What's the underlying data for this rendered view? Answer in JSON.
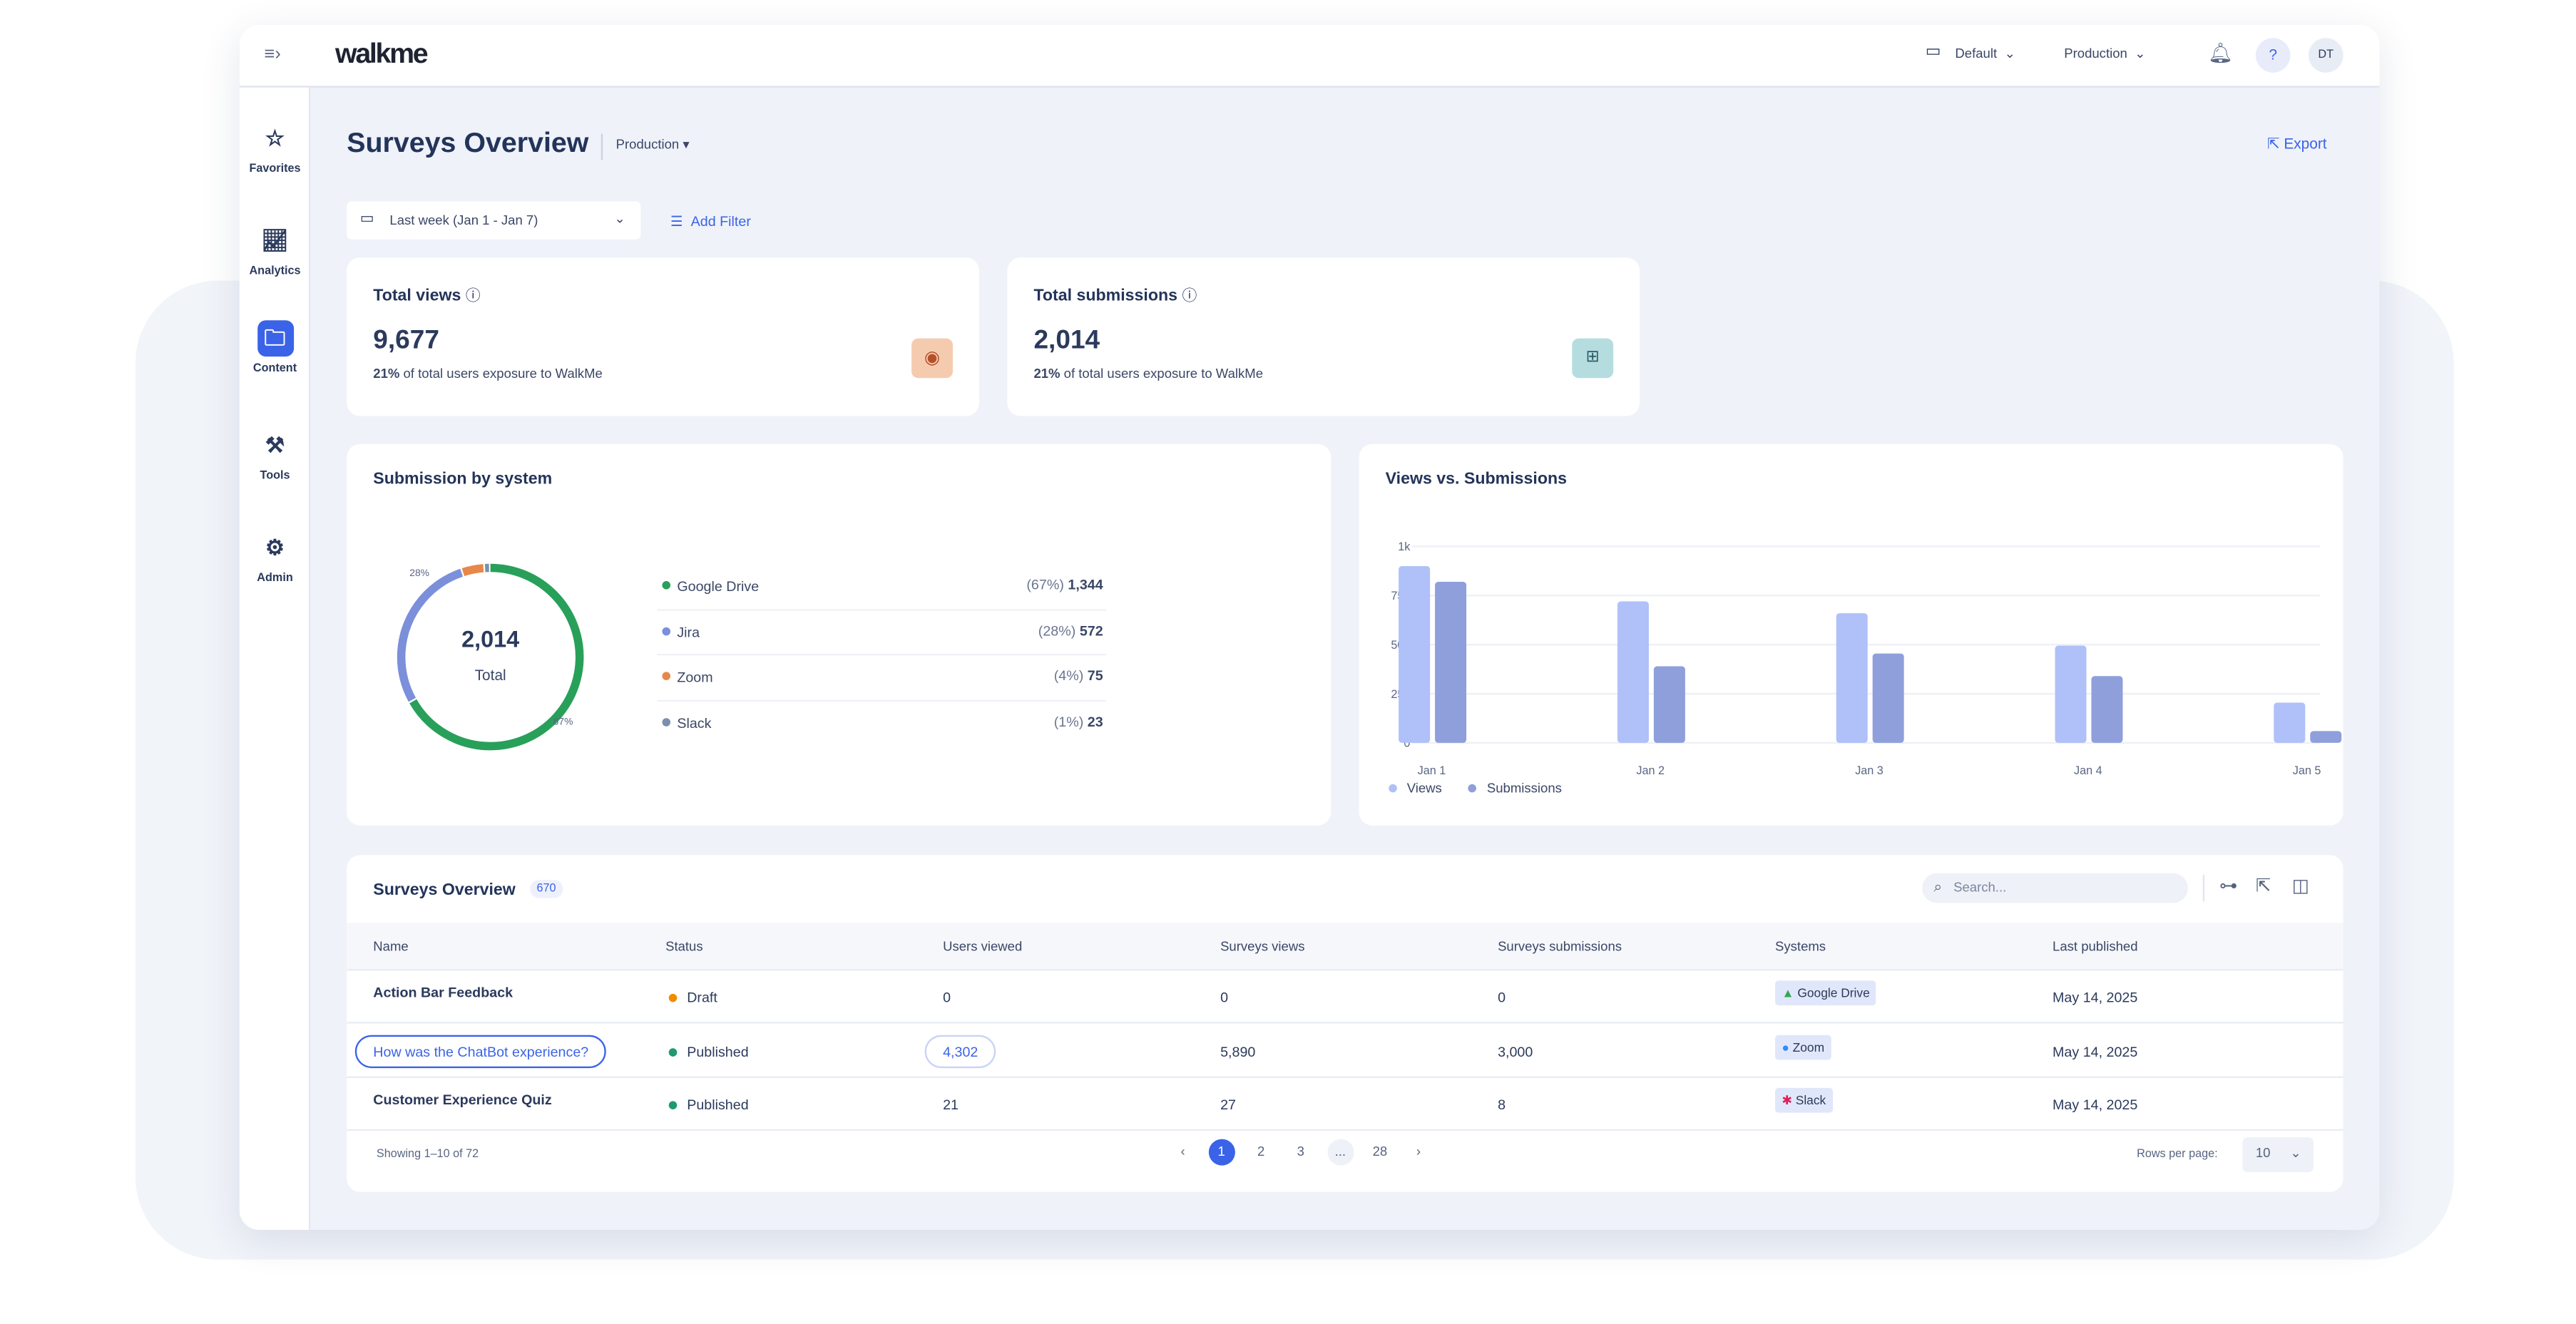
{
  "app": {
    "logo": "walkme",
    "calendar_label": "Default",
    "env_label": "Production",
    "avatar": "DT",
    "help": "?"
  },
  "sidebar": [
    {
      "label": "Favorites",
      "icon": "star-icon"
    },
    {
      "label": "Analytics",
      "icon": "chart-icon"
    },
    {
      "label": "Content",
      "icon": "folder-icon"
    },
    {
      "label": "Tools",
      "icon": "tools-icon"
    },
    {
      "label": "Admin",
      "icon": "gear-icon"
    }
  ],
  "page": {
    "title": "Surveys Overview",
    "env": "Production",
    "export": "Export",
    "date_range": "Last week (Jan 1 - Jan 7)",
    "add_filter": "Add Filter"
  },
  "kpis": [
    {
      "title": "Total views",
      "value": "9,677",
      "pct": "21%",
      "sub": " of total users exposure to WalkMe",
      "color": "#f5cbb0"
    },
    {
      "title": "Total submissions",
      "value": "2,014",
      "pct": "21%",
      "sub": " of total users exposure to WalkMe",
      "color": "#b5dde0"
    }
  ],
  "donut": {
    "title": "Submission by system",
    "total": "2,014",
    "total_label": "Total",
    "label_left": "28%",
    "label_right": "67%",
    "items": [
      {
        "name": "Google Drive",
        "pct": "(67%)",
        "value": "1,344",
        "share": 67,
        "color": "#28a05a"
      },
      {
        "name": "Jira",
        "pct": "(28%)",
        "value": "572",
        "share": 28,
        "color": "#7b8fda"
      },
      {
        "name": "Zoom",
        "pct": "(4%)",
        "value": "75",
        "share": 4,
        "color": "#e8874a"
      },
      {
        "name": "Slack",
        "pct": "(1%)",
        "value": "23",
        "share": 1,
        "color": "#7d8fac"
      }
    ]
  },
  "chart_data": {
    "type": "bar",
    "title": "Views vs. Submissions",
    "categories": [
      "Jan 1",
      "Jan 2",
      "Jan 3",
      "Jan 4",
      "Jan 5"
    ],
    "ylim": [
      0,
      1000
    ],
    "yticks": [
      "0",
      "250",
      "500",
      "750",
      "1k"
    ],
    "ytick_values": [
      0,
      250,
      500,
      750,
      1000
    ],
    "series": [
      {
        "name": "Views",
        "values": [
          900,
          720,
          660,
          495,
          205
        ],
        "color": "#b0c0f8"
      },
      {
        "name": "Submissions",
        "values": [
          820,
          390,
          455,
          340,
          60
        ],
        "color": "#8e9fdc"
      }
    ],
    "legend": "bottom-left"
  },
  "table": {
    "title": "Surveys Overview",
    "count": "670",
    "search_placeholder": "Search...",
    "columns": [
      "Name",
      "Status",
      "Users viewed",
      "Surveys views",
      "Surveys submissions",
      "Systems",
      "Last published"
    ],
    "rows": [
      {
        "name": "Action Bar Feedback",
        "status": "Draft",
        "status_color": "#f08c00",
        "users": "0",
        "views": "0",
        "subs": "0",
        "system": "Google Drive",
        "date": "May 14, 2025"
      },
      {
        "name": "How was the ChatBot experience?",
        "status": "Published",
        "status_color": "#1f9a6e",
        "users": "4,302",
        "views": "5,890",
        "subs": "3,000",
        "system": "Zoom",
        "date": "May 14, 2025"
      },
      {
        "name": "Customer Experience Quiz",
        "status": "Published",
        "status_color": "#1f9a6e",
        "users": "21",
        "views": "27",
        "subs": "8",
        "system": "Slack",
        "date": "May 14, 2025"
      }
    ],
    "showing": "Showing 1–10 of 72",
    "pages": [
      "1",
      "2",
      "3",
      "...",
      "28"
    ],
    "rows_per_page_label": "Rows per page:",
    "rows_per_page": "10"
  }
}
